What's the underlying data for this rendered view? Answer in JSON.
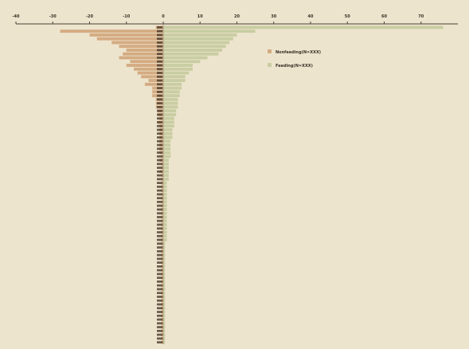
{
  "chart_data": {
    "type": "bar",
    "orientation": "horizontal-diverging",
    "title": "",
    "xlabel": "",
    "ylabel": "",
    "xlim": [
      -40,
      80
    ],
    "x_ticks": [
      "-40",
      "-30",
      "-20",
      "-10",
      "0",
      "10",
      "20",
      "30",
      "40",
      "50",
      "60",
      "70"
    ],
    "grid": false,
    "legend_position": "right",
    "series": [
      {
        "name": "Nonfeeding(N=XXX)",
        "color": "#d4ab82",
        "values": [
          -2,
          -28,
          -20,
          -18,
          -14,
          -12,
          -10,
          -11,
          -12,
          -9,
          -10,
          -8,
          -7,
          -6,
          -4,
          -5,
          -3,
          -3,
          -3,
          -2,
          -2,
          -2,
          -1.5,
          -1.5,
          -1,
          -1.5,
          -1,
          -1,
          -1,
          -1,
          -1,
          -1,
          -1,
          -1,
          -0.5,
          -1,
          -0.5,
          -0.5,
          -1,
          -0.5,
          -0.5,
          -0.5,
          -0.5,
          -0.5,
          -0.5,
          -0.5,
          -0.5,
          -0.5,
          -0.5,
          -0.5,
          -0.5,
          -0.5,
          -0.5,
          -0.5,
          -0.5,
          -0.5,
          -0.5,
          -0.5,
          -0.5,
          -0.5,
          -0.5,
          -0.5,
          -0.5,
          -0.5,
          -0.5,
          -0.5,
          -0.5,
          -0.5,
          -0.5,
          -0.5,
          -0.5,
          -0.5,
          -0.5,
          -0.5,
          -0.5,
          -0.5,
          -0.5,
          -0.5,
          -0.5,
          -0.5,
          -0.5,
          -0.5,
          -0.5,
          -0.5
        ]
      },
      {
        "name": "Feeding(N=XXX)",
        "color": "#c9cda2",
        "values": [
          76,
          25,
          20,
          19,
          18,
          17,
          16,
          15,
          12,
          10,
          8,
          8,
          7,
          6,
          6,
          5,
          5,
          4.5,
          4.5,
          4,
          4,
          4,
          3.5,
          3.5,
          3,
          3,
          3,
          2.5,
          2.5,
          2.5,
          2,
          2,
          2,
          2,
          2,
          1.5,
          1.5,
          1.5,
          1.5,
          1.5,
          1.5,
          1,
          1,
          1,
          1,
          1,
          1,
          1,
          1,
          1,
          1,
          1,
          1,
          1,
          1,
          1,
          1,
          0.5,
          0.5,
          0.5,
          0.5,
          0.5,
          0.5,
          0.5,
          0.5,
          0.5,
          0.5,
          0.5,
          0.5,
          0.5,
          0.5,
          0.5,
          0.5,
          0.5,
          0.5,
          0.5,
          0.5,
          0.5,
          0.5,
          0.5,
          0.5,
          0.5,
          0.5,
          0.5
        ]
      }
    ]
  },
  "colors": {
    "background": "#ede4cd",
    "axis": "#4a4036"
  }
}
